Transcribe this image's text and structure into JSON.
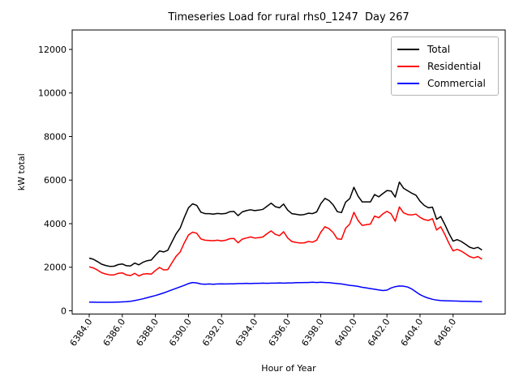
{
  "chart_data": {
    "type": "line",
    "title": "Timeseries Load for rural rhs0_1247  Day 267",
    "xlabel": "Hour of Year",
    "ylabel": "kW total",
    "grid": false,
    "xlim": [
      6382.97,
      6409.15
    ],
    "ylim": [
      -149,
      12893
    ],
    "x_ticks": [
      6384.0,
      6386.0,
      6388.0,
      6390.0,
      6392.0,
      6394.0,
      6396.0,
      6398.0,
      6400.0,
      6402.0,
      6404.0,
      6406.0
    ],
    "x_tick_labels": [
      "6384.0",
      "6386.0",
      "6388.0",
      "6390.0",
      "6392.0",
      "6394.0",
      "6396.0",
      "6398.0",
      "6400.0",
      "6402.0",
      "6404.0",
      "6406.0"
    ],
    "y_ticks": [
      0,
      2000,
      4000,
      6000,
      8000,
      10000,
      12000
    ],
    "y_tick_labels": [
      "0",
      "2000",
      "4000",
      "6000",
      "8000",
      "10000",
      "12000"
    ],
    "x_start": 6384.0,
    "x_step": 0.25,
    "x_end": 6407.75,
    "legend": {
      "position": "upper right"
    },
    "series": [
      {
        "name": "Total",
        "color": "#000000",
        "values": [
          2420,
          2365,
          2260,
          2140,
          2080,
          2040,
          2045,
          2120,
          2150,
          2070,
          2060,
          2190,
          2110,
          2230,
          2300,
          2330,
          2550,
          2750,
          2700,
          2780,
          3160,
          3530,
          3800,
          4290,
          4730,
          4910,
          4840,
          4530,
          4460,
          4460,
          4440,
          4470,
          4450,
          4470,
          4550,
          4560,
          4370,
          4540,
          4600,
          4640,
          4600,
          4620,
          4660,
          4800,
          4940,
          4780,
          4730,
          4900,
          4620,
          4460,
          4430,
          4400,
          4420,
          4480,
          4460,
          4540,
          4920,
          5160,
          5060,
          4860,
          4550,
          4510,
          4990,
          5150,
          5670,
          5270,
          5000,
          5000,
          5000,
          5340,
          5230,
          5380,
          5520,
          5500,
          5220,
          5910,
          5630,
          5510,
          5400,
          5310,
          5030,
          4840,
          4730,
          4760,
          4200,
          4330,
          3960,
          3555,
          3200,
          3265,
          3180,
          3055,
          2920,
          2858,
          2915,
          2790
        ]
      },
      {
        "name": "Residential",
        "color": "#ff0000",
        "values": [
          2020,
          1970,
          1870,
          1750,
          1690,
          1650,
          1650,
          1720,
          1740,
          1650,
          1620,
          1720,
          1600,
          1680,
          1700,
          1680,
          1850,
          1990,
          1880,
          1890,
          2200,
          2500,
          2700,
          3120,
          3480,
          3610,
          3560,
          3300,
          3240,
          3230,
          3220,
          3240,
          3210,
          3240,
          3310,
          3320,
          3120,
          3290,
          3340,
          3390,
          3340,
          3360,
          3390,
          3540,
          3670,
          3510,
          3450,
          3630,
          3340,
          3180,
          3140,
          3110,
          3120,
          3180,
          3150,
          3240,
          3610,
          3860,
          3770,
          3590,
          3300,
          3280,
          3790,
          3980,
          4520,
          4150,
          3920,
          3950,
          3980,
          4350,
          4270,
          4450,
          4570,
          4450,
          4110,
          4770,
          4500,
          4420,
          4400,
          4440,
          4290,
          4190,
          4150,
          4230,
          3710,
          3860,
          3500,
          3100,
          2750,
          2820,
          2740,
          2620,
          2490,
          2430,
          2490,
          2370
        ]
      },
      {
        "name": "Commercial",
        "color": "#0000ff",
        "values": [
          400,
          395,
          390,
          390,
          390,
          390,
          395,
          400,
          410,
          420,
          440,
          470,
          510,
          550,
          600,
          650,
          700,
          760,
          820,
          890,
          960,
          1030,
          1100,
          1170,
          1250,
          1300,
          1280,
          1230,
          1220,
          1230,
          1220,
          1230,
          1240,
          1230,
          1240,
          1240,
          1250,
          1250,
          1260,
          1250,
          1260,
          1260,
          1270,
          1260,
          1270,
          1270,
          1280,
          1270,
          1280,
          1280,
          1290,
          1290,
          1300,
          1300,
          1310,
          1300,
          1310,
          1300,
          1290,
          1270,
          1250,
          1230,
          1200,
          1170,
          1150,
          1120,
          1080,
          1050,
          1020,
          990,
          960,
          930,
          950,
          1050,
          1110,
          1140,
          1130,
          1090,
          1000,
          870,
          740,
          650,
          580,
          530,
          490,
          470,
          460,
          455,
          450,
          445,
          440,
          435,
          430,
          428,
          425,
          420
        ]
      }
    ]
  }
}
